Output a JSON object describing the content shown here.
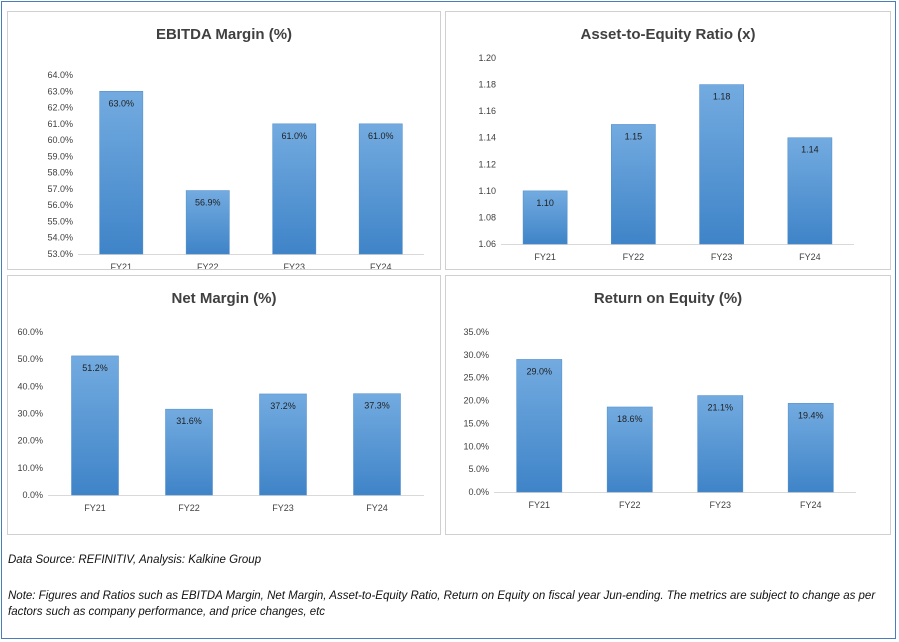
{
  "chart_data": [
    {
      "type": "bar",
      "title": "EBITDA Margin (%)",
      "categories": [
        "FY21",
        "FY22",
        "FY23",
        "FY24"
      ],
      "values": [
        63.0,
        56.9,
        61.0,
        61.0
      ],
      "data_labels": [
        "63.0%",
        "56.9%",
        "61.0%",
        "61.0%"
      ],
      "ylim": [
        53.0,
        64.0
      ],
      "yticks": [
        "53.0%",
        "54.0%",
        "55.0%",
        "56.0%",
        "57.0%",
        "58.0%",
        "59.0%",
        "60.0%",
        "61.0%",
        "62.0%",
        "63.0%",
        "64.0%"
      ],
      "ytick_values": [
        53,
        54,
        55,
        56,
        57,
        58,
        59,
        60,
        61,
        62,
        63,
        64
      ],
      "grid": false,
      "bar_color": "#5b9bd5"
    },
    {
      "type": "bar",
      "title": "Asset-to-Equity Ratio (x)",
      "categories": [
        "FY21",
        "FY22",
        "FY23",
        "FY24"
      ],
      "values": [
        1.1,
        1.15,
        1.18,
        1.14
      ],
      "data_labels": [
        "1.10",
        "1.15",
        "1.18",
        "1.14"
      ],
      "ylim": [
        1.06,
        1.2
      ],
      "yticks": [
        "1.06",
        "1.08",
        "1.10",
        "1.12",
        "1.14",
        "1.16",
        "1.18",
        "1.20"
      ],
      "ytick_values": [
        1.06,
        1.08,
        1.1,
        1.12,
        1.14,
        1.16,
        1.18,
        1.2
      ],
      "grid": false,
      "bar_color": "#5b9bd5"
    },
    {
      "type": "bar",
      "title": "Net Margin (%)",
      "categories": [
        "FY21",
        "FY22",
        "FY23",
        "FY24"
      ],
      "values": [
        51.2,
        31.6,
        37.2,
        37.3
      ],
      "data_labels": [
        "51.2%",
        "31.6%",
        "37.2%",
        "37.3%"
      ],
      "ylim": [
        0,
        60
      ],
      "yticks": [
        "0.0%",
        "10.0%",
        "20.0%",
        "30.0%",
        "40.0%",
        "50.0%",
        "60.0%"
      ],
      "ytick_values": [
        0,
        10,
        20,
        30,
        40,
        50,
        60
      ],
      "grid": false,
      "bar_color": "#5b9bd5"
    },
    {
      "type": "bar",
      "title": "Return on Equity (%)",
      "categories": [
        "FY21",
        "FY22",
        "FY23",
        "FY24"
      ],
      "values": [
        29.0,
        18.6,
        21.1,
        19.4
      ],
      "data_labels": [
        "29.0%",
        "18.6%",
        "21.1%",
        "19.4%"
      ],
      "ylim": [
        0,
        35
      ],
      "yticks": [
        "0.0%",
        "5.0%",
        "10.0%",
        "15.0%",
        "20.0%",
        "25.0%",
        "30.0%",
        "35.0%"
      ],
      "ytick_values": [
        0,
        5,
        10,
        15,
        20,
        25,
        30,
        35
      ],
      "grid": false,
      "bar_color": "#5b9bd5"
    }
  ],
  "footer": {
    "source": "Data Source: REFINITIV, Analysis: Kalkine Group",
    "note": "Note: Figures and Ratios such as EBITDA Margin, Net Margin, Asset-to-Equity Ratio, Return on Equity on fiscal year Jun-ending. The metrics are subject to change as per factors such as company performance, and price changes, etc"
  }
}
